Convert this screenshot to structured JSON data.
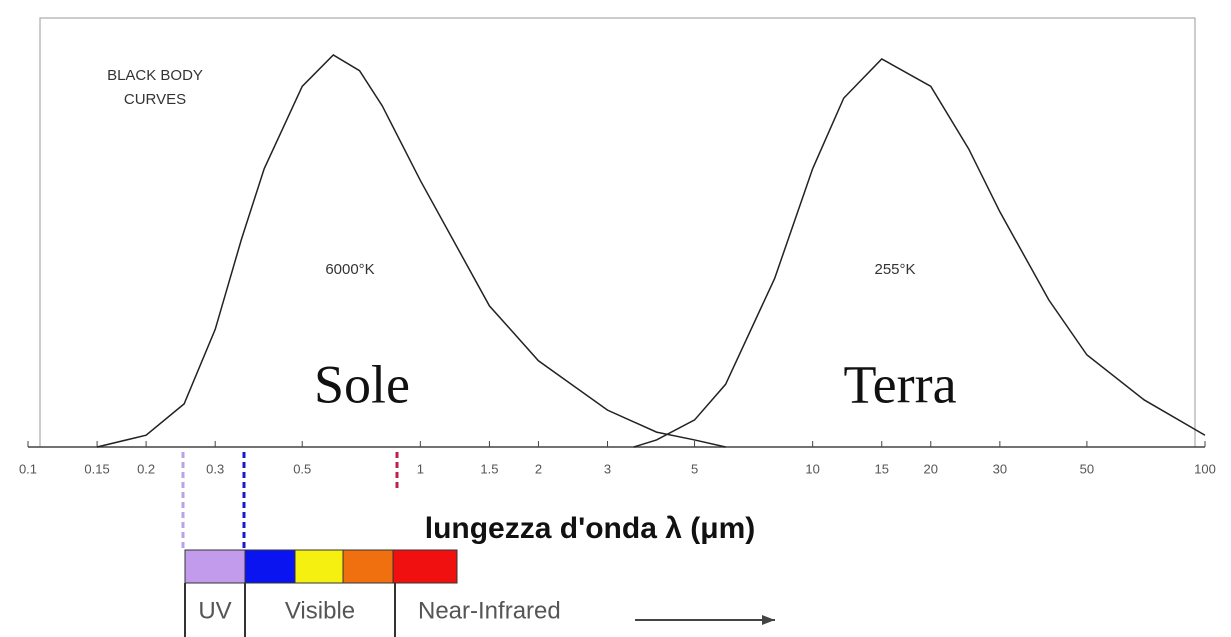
{
  "chart_data": {
    "type": "line",
    "title": [
      "BLACK BODY",
      "CURVES"
    ],
    "x_label": "lungezza d'onda λ (μm)",
    "x_log": true,
    "xlim": [
      0.1,
      100
    ],
    "xticks": [
      0.1,
      0.15,
      0.2,
      0.3,
      0.5,
      1,
      1.5,
      2,
      3,
      5,
      10,
      15,
      20,
      30,
      50,
      100
    ],
    "ylim": [
      0,
      1
    ],
    "series": [
      {
        "name": "Sole",
        "temperature": "6000°K",
        "color": "#222222",
        "x": [
          0.15,
          0.2,
          0.25,
          0.3,
          0.35,
          0.4,
          0.5,
          0.6,
          0.7,
          0.8,
          1,
          1.5,
          2,
          3,
          4,
          5,
          6
        ],
        "values": [
          0,
          0.03,
          0.11,
          0.3,
          0.53,
          0.71,
          0.92,
          1,
          0.96,
          0.87,
          0.68,
          0.36,
          0.22,
          0.094,
          0.038,
          0.018,
          0
        ]
      },
      {
        "name": "Terra",
        "temperature": "255°K",
        "color": "#222222",
        "x": [
          3.5,
          4,
          5,
          6,
          8,
          10,
          12,
          15,
          20,
          25,
          30,
          40,
          50,
          70,
          100
        ],
        "values": [
          0,
          0.018,
          0.069,
          0.16,
          0.43,
          0.71,
          0.89,
          0.99,
          0.92,
          0.76,
          0.6,
          0.375,
          0.235,
          0.12,
          0.03
        ]
      }
    ],
    "bands": [
      "UV",
      "Visible",
      "Near-Infrared"
    ]
  }
}
